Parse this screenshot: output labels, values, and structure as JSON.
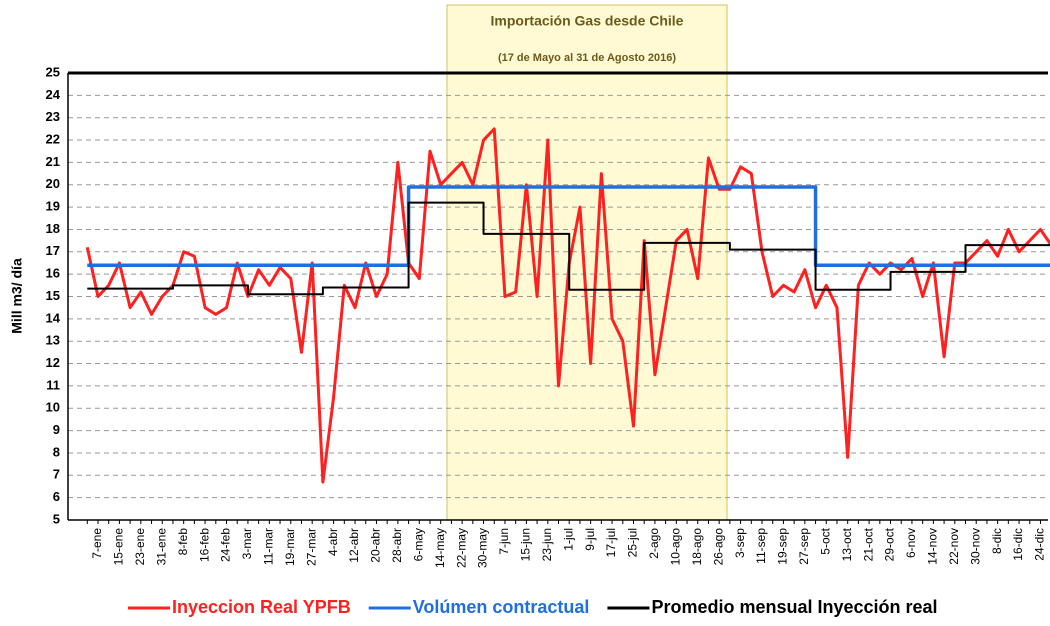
{
  "chart_data": {
    "type": "line",
    "title": "Importación Gas desde Chile",
    "subtitle": "(17 de Mayo al 31 de Agosto 2016)",
    "y_label": "Mill m3/ día",
    "categories": [
      null,
      "7-ene",
      null,
      "15-ene",
      null,
      "23-ene",
      null,
      "31-ene",
      null,
      "8-feb",
      null,
      "16-feb",
      null,
      "24-feb",
      null,
      "3-mar",
      null,
      "11-mar",
      null,
      "19-mar",
      null,
      "27-mar",
      null,
      "4-abr",
      null,
      "12-abr",
      null,
      "20-abr",
      null,
      "28-abr",
      null,
      "6-may",
      null,
      "14-may",
      null,
      "22-may",
      null,
      "30-may",
      null,
      "7-jun",
      null,
      "15-jun",
      null,
      "23-jun",
      null,
      "1-jul",
      null,
      "9-jul",
      null,
      "17-jul",
      null,
      "25-jul",
      null,
      "2-ago",
      null,
      "10-ago",
      null,
      "18-ago",
      null,
      "26-ago",
      null,
      "3-sep",
      null,
      "11-sep",
      null,
      "19-sep",
      null,
      "27-sep",
      null,
      "5-oct",
      null,
      "13-oct",
      null,
      "21-oct",
      null,
      "29-oct",
      null,
      "6-nov",
      null,
      "14-nov",
      null,
      "22-nov",
      null,
      "30-nov",
      null,
      "8-dic",
      null,
      "16-dic",
      null,
      "24-dic",
      null
    ],
    "series": [
      {
        "name": "Inyeccion Real YPFB",
        "color": "#ff2020",
        "width": 3,
        "values": [
          17.2,
          15.0,
          15.5,
          16.5,
          14.5,
          15.2,
          14.2,
          15.0,
          15.5,
          17.0,
          16.8,
          14.5,
          14.2,
          14.5,
          16.5,
          15.0,
          16.2,
          15.5,
          16.3,
          15.8,
          12.5,
          16.5,
          6.7,
          10.5,
          15.5,
          14.5,
          16.5,
          15.0,
          16.0,
          21.0,
          16.5,
          15.8,
          21.5,
          20.0,
          20.5,
          21.0,
          20.0,
          22.0,
          22.5,
          15.0,
          15.2,
          20.0,
          15.0,
          22.0,
          11.0,
          16.5,
          19.0,
          12.0,
          20.5,
          14.0,
          13.0,
          9.2,
          17.5,
          11.5,
          14.5,
          17.5,
          18.0,
          15.8,
          21.2,
          19.8,
          19.8,
          20.8,
          20.5,
          17.0,
          15.0,
          15.5,
          15.2,
          16.2,
          14.5,
          15.5,
          14.5,
          7.8,
          15.5,
          16.5,
          16.0,
          16.5,
          16.2,
          16.7,
          15.0,
          16.5,
          12.3,
          16.5,
          16.5,
          17.0,
          17.5,
          16.8,
          18.0,
          17.0,
          17.5,
          18.0,
          17.3
        ]
      },
      {
        "name": "Volúmen contractual",
        "color": "#1f6fe0",
        "width": 3.5,
        "step": true,
        "values": [
          16.4,
          16.4,
          16.4,
          16.4,
          16.4,
          16.4,
          16.4,
          16.4,
          16.4,
          16.4,
          16.4,
          16.4,
          16.4,
          16.4,
          16.4,
          16.4,
          16.4,
          16.4,
          16.4,
          16.4,
          16.4,
          16.4,
          16.4,
          16.4,
          16.4,
          16.4,
          16.4,
          16.4,
          16.4,
          16.4,
          19.9,
          19.9,
          19.9,
          19.9,
          19.9,
          19.9,
          19.9,
          19.9,
          19.9,
          19.9,
          19.9,
          19.9,
          19.9,
          19.9,
          19.9,
          19.9,
          19.9,
          19.9,
          19.9,
          19.9,
          19.9,
          19.9,
          19.9,
          19.9,
          19.9,
          19.9,
          19.9,
          19.9,
          19.9,
          19.9,
          19.9,
          19.9,
          19.9,
          19.9,
          19.9,
          19.9,
          19.9,
          19.9,
          16.4,
          16.4,
          16.4,
          16.4,
          16.4,
          16.4,
          16.4,
          16.4,
          16.4,
          16.4,
          16.4,
          16.4,
          16.4,
          16.4,
          16.4,
          16.4,
          16.4,
          16.4,
          16.4,
          16.4,
          16.4,
          16.4,
          16.4
        ]
      },
      {
        "name": "Promedio mensual Inyección real",
        "color": "#000000",
        "width": 2,
        "step": true,
        "values": [
          15.35,
          15.35,
          15.35,
          15.35,
          15.35,
          15.35,
          15.35,
          15.35,
          15.5,
          15.5,
          15.5,
          15.5,
          15.5,
          15.5,
          15.5,
          15.1,
          15.1,
          15.1,
          15.1,
          15.1,
          15.1,
          15.1,
          15.4,
          15.4,
          15.4,
          15.4,
          15.4,
          15.4,
          15.4,
          15.4,
          19.2,
          19.2,
          19.2,
          19.2,
          19.2,
          19.2,
          19.2,
          17.8,
          17.8,
          17.8,
          17.8,
          17.8,
          17.8,
          17.8,
          17.8,
          15.3,
          15.3,
          15.3,
          15.3,
          15.3,
          15.3,
          15.3,
          17.4,
          17.4,
          17.4,
          17.4,
          17.4,
          17.4,
          17.4,
          17.4,
          17.1,
          17.1,
          17.1,
          17.1,
          17.1,
          17.1,
          17.1,
          17.1,
          15.3,
          15.3,
          15.3,
          15.3,
          15.3,
          15.3,
          15.3,
          16.1,
          16.1,
          16.1,
          16.1,
          16.1,
          16.1,
          16.1,
          17.3,
          17.3,
          17.3,
          17.3,
          17.3,
          17.3,
          17.3,
          17.3,
          17.3
        ]
      }
    ],
    "ylim": [
      5,
      25
    ],
    "yticks": [
      5,
      6,
      7,
      8,
      9,
      10,
      11,
      12,
      13,
      14,
      15,
      16,
      17,
      18,
      19,
      20,
      21,
      22,
      23,
      24,
      25
    ],
    "grid": true
  }
}
